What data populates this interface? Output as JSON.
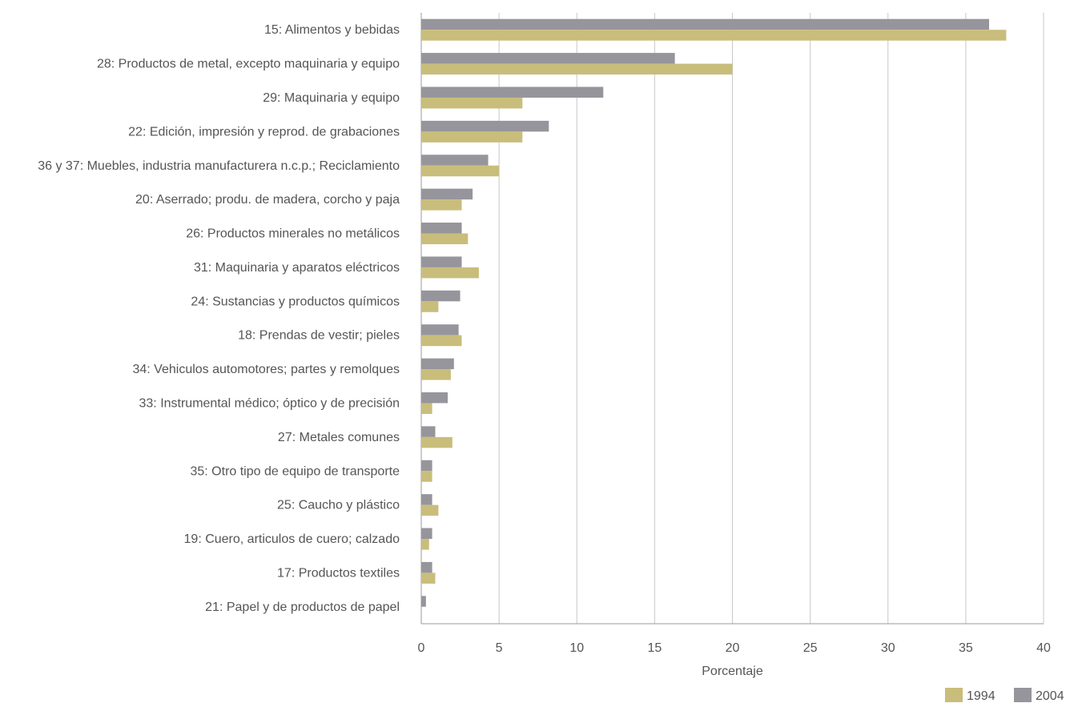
{
  "chart_data": {
    "type": "bar",
    "orientation": "horizontal",
    "title": "",
    "xlabel": "Porcentaje",
    "ylabel": "",
    "xlim": [
      0,
      40
    ],
    "x_ticks": [
      "0",
      "5",
      "10",
      "15",
      "20",
      "25",
      "30",
      "35",
      "40"
    ],
    "grid": true,
    "legend_position": "bottom-right",
    "categories": [
      "15: Alimentos y bebidas",
      "28: Productos de metal, excepto maquinaria y equipo",
      "29: Maquinaria y equipo",
      "22: Edición, impresión y reprod. de grabaciones",
      "36 y 37: Muebles, industria manufacturera n.c.p.; Reciclamiento",
      "20: Aserrado; produ. de madera, corcho y paja",
      "26: Productos minerales no metálicos",
      "31: Maquinaria y aparatos eléctricos",
      "24: Sustancias y productos químicos",
      "18: Prendas de vestir; pieles",
      "34: Vehiculos automotores; partes y remolques",
      "33: Instrumental médico; óptico y de precisión",
      "27: Metales comunes",
      "35: Otro tipo de equipo de transporte",
      "25: Caucho y plástico",
      "19: Cuero, articulos de cuero; calzado",
      "17: Productos textiles",
      "21: Papel y de productos de papel"
    ],
    "series": [
      {
        "name": "1994",
        "color": "#c9bd7b",
        "values": [
          37.6,
          20.0,
          6.5,
          6.5,
          5.0,
          2.6,
          3.0,
          3.7,
          1.1,
          2.6,
          1.9,
          0.7,
          2.0,
          0.7,
          1.1,
          0.5,
          0.9,
          0.0
        ]
      },
      {
        "name": "2004",
        "color": "#96959c",
        "values": [
          36.5,
          16.3,
          11.7,
          8.2,
          4.3,
          3.3,
          2.6,
          2.6,
          2.5,
          2.4,
          2.1,
          1.7,
          0.9,
          0.7,
          0.7,
          0.7,
          0.7,
          0.3
        ]
      }
    ]
  }
}
